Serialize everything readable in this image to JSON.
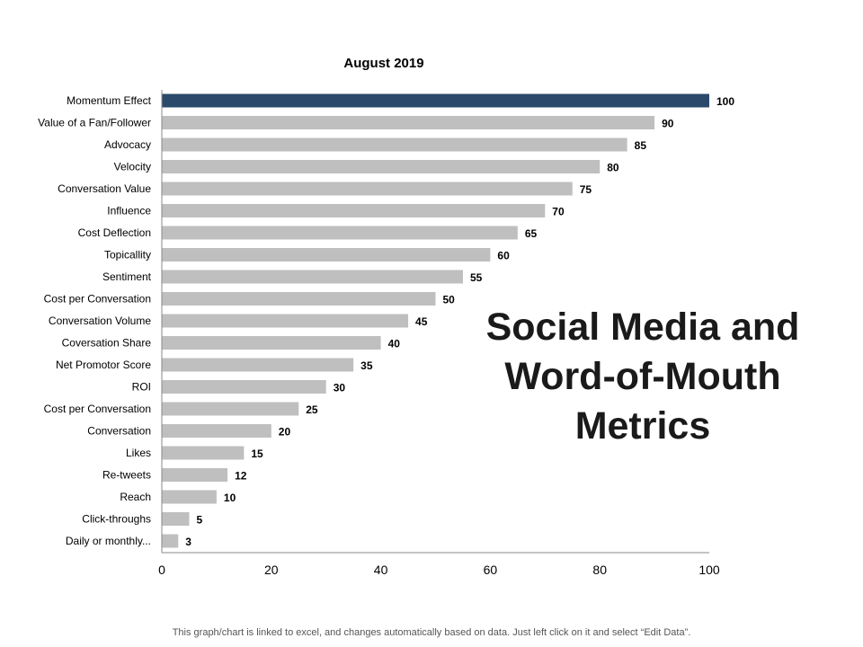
{
  "side_heading": "Social Media and Word-of-Mouth Metrics",
  "footer_note": "This graph/chart is linked to excel, and changes automatically based on data. Just left click on it and select “Edit Data”.",
  "colors": {
    "highlight_bar": "#2b4a6b",
    "bar": "#bfbfbf",
    "axis": "#888888"
  },
  "chart_data": {
    "type": "bar",
    "orientation": "horizontal",
    "title": "August 2019",
    "categories": [
      "Momentum Effect",
      "Value of a Fan/Follower",
      "Advocacy",
      "Velocity",
      "Conversation Value",
      "Influence",
      "Cost Deflection",
      "Topicallity",
      "Sentiment",
      "Cost per Conversation",
      "Conversation Volume",
      "Coversation Share",
      "Net Promotor Score",
      "ROI",
      "Cost per Conversation",
      "Conversation",
      "Likes",
      "Re-tweets",
      "Reach",
      "Click-throughs",
      "Daily or monthly..."
    ],
    "values": [
      100,
      90,
      85,
      80,
      75,
      70,
      65,
      60,
      55,
      50,
      45,
      40,
      35,
      30,
      25,
      20,
      15,
      12,
      10,
      5,
      3
    ],
    "highlight_index": 0,
    "xlim": [
      0,
      100
    ],
    "xticks": [
      0,
      20,
      40,
      60,
      80,
      100
    ],
    "xlabel": "",
    "ylabel": "",
    "grid": false,
    "legend": "none",
    "data_labels": true
  }
}
